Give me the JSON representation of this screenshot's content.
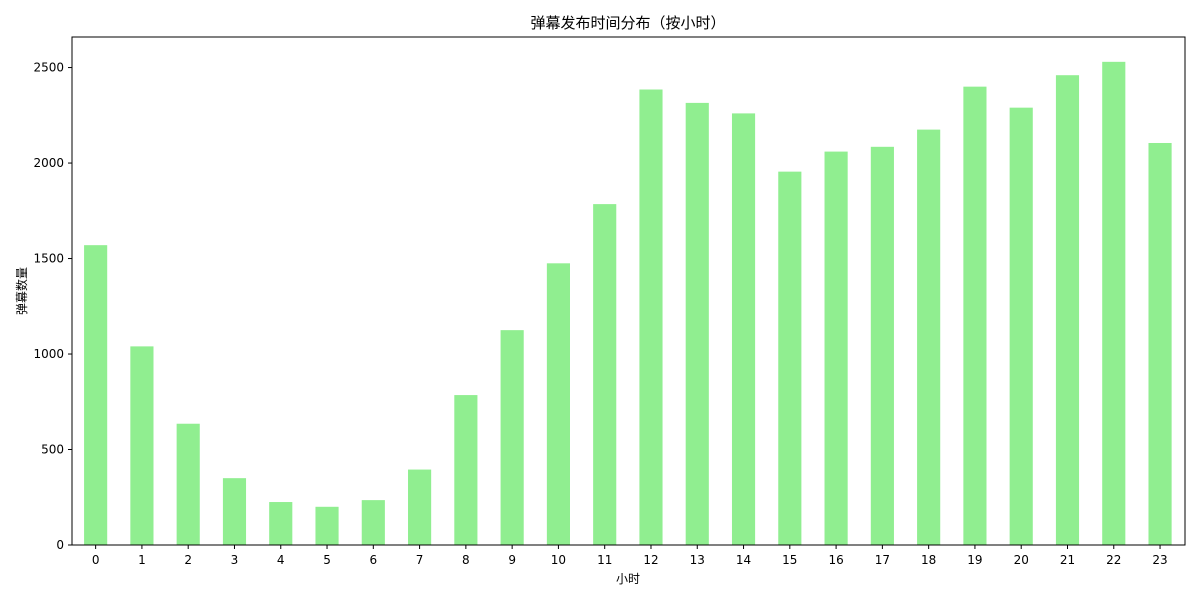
{
  "chart_data": {
    "type": "bar",
    "title": "弹幕发布时间分布（按小时）",
    "xlabel": "小时",
    "ylabel": "弹幕数量",
    "categories": [
      "0",
      "1",
      "2",
      "3",
      "4",
      "5",
      "6",
      "7",
      "8",
      "9",
      "10",
      "11",
      "12",
      "13",
      "14",
      "15",
      "16",
      "17",
      "18",
      "19",
      "20",
      "21",
      "22",
      "23"
    ],
    "values": [
      1570,
      1040,
      635,
      350,
      225,
      200,
      235,
      395,
      785,
      1125,
      1475,
      1785,
      2385,
      2315,
      2260,
      1955,
      2060,
      2085,
      2175,
      2400,
      2290,
      2460,
      2530,
      2105
    ],
    "ylim": [
      0,
      2660
    ],
    "yticks": [
      0,
      500,
      1000,
      1500,
      2000,
      2500
    ],
    "bar_color": "#90ee90",
    "grid": false,
    "legend": false
  }
}
